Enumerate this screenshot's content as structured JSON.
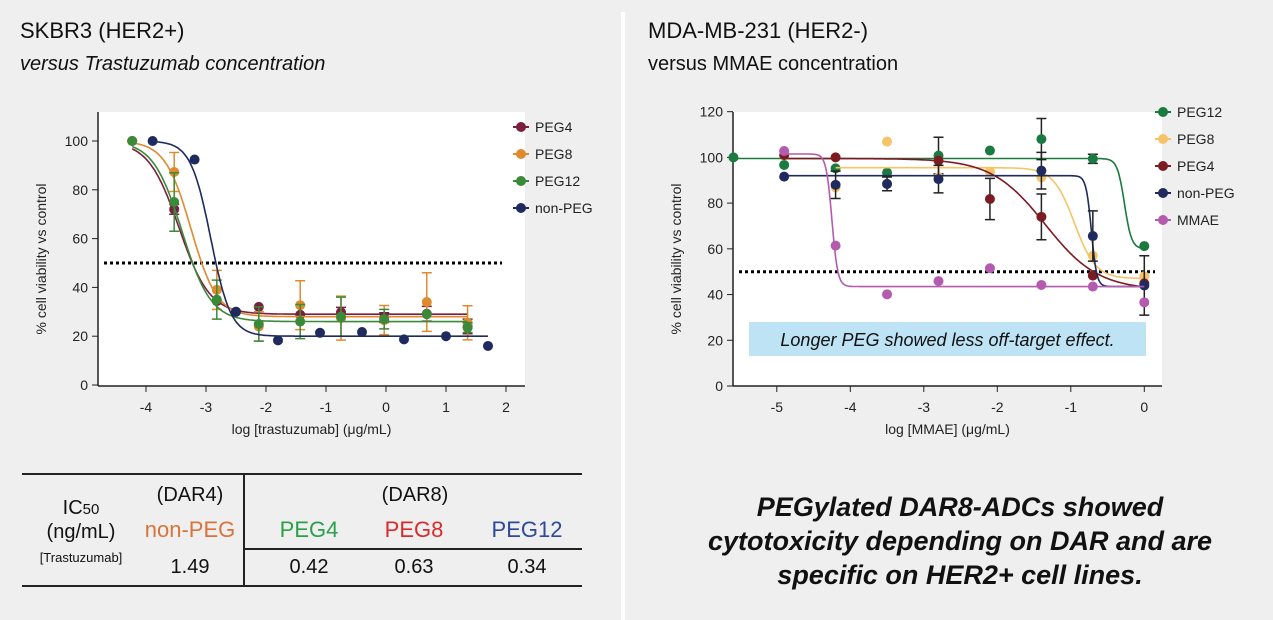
{
  "left_panel": {
    "title": "SKBR3 (HER2+)",
    "subtitle": "versus Trastuzumab concentration"
  },
  "right_panel": {
    "title": "MDA-MB-231 (HER2-)",
    "subtitle": "versus MMAE concentration",
    "conclusion": [
      "PEGylated DAR8-ADCs showed",
      "cytotoxicity depending on DAR and are",
      "specific on HER2+ cell lines."
    ]
  },
  "chart_data": [
    {
      "type": "scatter",
      "xlabel": "log [trastuzumab] (μg/mL)",
      "ylabel": "% cell viability vs control",
      "xlim": [
        -4.8,
        2.3
      ],
      "ylim": [
        0,
        110
      ],
      "xticks": [
        -4,
        -3,
        -2,
        -1,
        0,
        1,
        2
      ],
      "yticks": [
        0,
        20,
        40,
        60,
        80,
        100
      ],
      "reference_line": {
        "y": 50,
        "style": "dotted"
      },
      "legend_position": "right",
      "series": [
        {
          "name": "PEG4",
          "color": "#7a1f3d",
          "points": [
            [
              -4.23,
              100,
              0
            ],
            [
              -3.53,
              72,
              2
            ],
            [
              -2.82,
              34.4,
              0
            ],
            [
              -2.5,
              30,
              0
            ],
            [
              -2.12,
              32,
              0
            ],
            [
              -1.43,
              28.8,
              0
            ],
            [
              -0.75,
              29.8,
              2
            ],
            [
              -0.03,
              27.6,
              2
            ],
            [
              0.68,
              29.2,
              3
            ],
            [
              1.36,
              24,
              3
            ]
          ],
          "fit": {
            "top": 100,
            "bottom": 29,
            "logIC50": -3.45,
            "hill": 1.7
          }
        },
        {
          "name": "PEG8",
          "color": "#e08a2e",
          "points": [
            [
              -4.23,
              100,
              0
            ],
            [
              -3.53,
              87.3,
              8
            ],
            [
              -2.82,
              39,
              8
            ],
            [
              -2.12,
              24,
              6
            ],
            [
              -1.43,
              32.7,
              10
            ],
            [
              -0.75,
              27.4,
              9
            ],
            [
              -0.03,
              26.6,
              6
            ],
            [
              0.68,
              34,
              12
            ],
            [
              1.36,
              25.5,
              7
            ]
          ],
          "fit": {
            "top": 100,
            "bottom": 28,
            "logIC50": -3.25,
            "hill": 2.0
          }
        },
        {
          "name": "PEG12",
          "color": "#3a8a3a",
          "points": [
            [
              -4.23,
              100,
              0
            ],
            [
              -3.53,
              75,
              12
            ],
            [
              -2.82,
              35,
              8
            ],
            [
              -2.12,
              25,
              7
            ],
            [
              -1.43,
              26,
              7
            ],
            [
              -0.75,
              28,
              8
            ],
            [
              -0.03,
              27,
              4
            ],
            [
              0.68,
              29,
              0
            ],
            [
              1.36,
              23.5,
              2
            ]
          ],
          "fit": {
            "top": 100,
            "bottom": 26,
            "logIC50": -3.4,
            "hill": 1.8
          }
        },
        {
          "name": "non-PEG",
          "color": "#1f2a5e",
          "points": [
            [
              -3.89,
              100,
              0
            ],
            [
              -3.19,
              92.4,
              0
            ],
            [
              -2.5,
              30,
              0
            ],
            [
              -1.8,
              18.3,
              0
            ],
            [
              -1.1,
              21.4,
              0
            ],
            [
              -0.4,
              21.7,
              0
            ],
            [
              0.3,
              18.7,
              0
            ],
            [
              1.0,
              20,
              0
            ],
            [
              1.7,
              16,
              0
            ]
          ],
          "fit": {
            "top": 100,
            "bottom": 20,
            "logIC50": -2.92,
            "hill": 2.6
          }
        }
      ]
    },
    {
      "type": "scatter",
      "xlabel": "log [MMAE] (μg/mL)",
      "ylabel": "% cell viability vs control",
      "xlim": [
        -5.6,
        0.25
      ],
      "ylim": [
        0,
        120
      ],
      "xticks": [
        -5,
        -4,
        -3,
        -2,
        -1,
        0
      ],
      "yticks": [
        0,
        20,
        40,
        60,
        80,
        100,
        120
      ],
      "reference_line": {
        "y": 50,
        "style": "dotted"
      },
      "legend_position": "right",
      "annotation": "Longer PEG showed less off-target effect.",
      "series": [
        {
          "name": "PEG12",
          "color": "#1a7a3f",
          "points": [
            [
              -5.59,
              100,
              0
            ],
            [
              -4.9,
              96.7,
              0
            ],
            [
              -4.2,
              95.2,
              0
            ],
            [
              -3.5,
              93.3,
              0
            ],
            [
              -2.8,
              100.8,
              8
            ],
            [
              -2.1,
              103,
              0
            ],
            [
              -1.4,
              108,
              9
            ],
            [
              -0.7,
              99.4,
              2
            ],
            [
              0,
              61.2,
              0
            ]
          ],
          "fit": {
            "top": 99.5,
            "bottom": 60,
            "logIC50": -0.27,
            "hill": 9
          }
        },
        {
          "name": "PEG8",
          "color": "#f5c468",
          "points": [
            [
              -4.2,
              86.9,
              0
            ],
            [
              -3.5,
              106.9,
              0
            ],
            [
              -2.8,
              91.3,
              0
            ],
            [
              -2.1,
              93.8,
              0
            ],
            [
              -1.4,
              91.3,
              0
            ],
            [
              -0.7,
              57,
              0
            ],
            [
              0,
              48,
              0
            ]
          ],
          "fit": {
            "top": 95.5,
            "bottom": 47,
            "logIC50": -0.95,
            "hill": 3
          }
        },
        {
          "name": "PEG4",
          "color": "#7b1c22",
          "points": [
            [
              -4.9,
              101,
              0
            ],
            [
              -4.2,
              100,
              0
            ],
            [
              -2.8,
              98.6,
              0
            ],
            [
              -2.1,
              81.8,
              9
            ],
            [
              -1.4,
              74,
              10
            ],
            [
              -0.7,
              48.3,
              0
            ],
            [
              0,
              44.9,
              0
            ]
          ],
          "fit": {
            "top": 99.5,
            "bottom": 42,
            "logIC50": -1.35,
            "hill": 1.2
          }
        },
        {
          "name": "non-PEG",
          "color": "#1f2a5e",
          "points": [
            [
              -4.9,
              91.6,
              0
            ],
            [
              -4.2,
              88,
              6
            ],
            [
              -3.5,
              88.4,
              3
            ],
            [
              -2.8,
              90.5,
              6
            ],
            [
              -1.4,
              94.2,
              8
            ],
            [
              -0.7,
              65.6,
              11
            ],
            [
              0,
              44,
              13
            ]
          ],
          "fit": {
            "top": 92,
            "bottom": 43.5,
            "logIC50": -0.72,
            "hill": 12
          }
        },
        {
          "name": "MMAE",
          "color": "#b45bb0",
          "points": [
            [
              -4.9,
              102.8,
              0
            ],
            [
              -4.2,
              61.4,
              0
            ],
            [
              -3.5,
              40.1,
              0
            ],
            [
              -2.8,
              45.9,
              0
            ],
            [
              -2.1,
              51.5,
              0
            ],
            [
              -1.4,
              44.2,
              0
            ],
            [
              -0.7,
              43.5,
              0
            ],
            [
              0,
              36.6,
              0
            ]
          ],
          "fit": {
            "top": 101.5,
            "bottom": 43.5,
            "logIC50": -4.25,
            "hill": 11
          }
        }
      ]
    }
  ],
  "ic50_table": {
    "row_label": {
      "line1": "IC",
      "subscript": "50",
      "line2": "(ng/mL)",
      "line3": "[Trastuzumab]"
    },
    "group_dar4": "(DAR4)",
    "group_dar8": "(DAR8)",
    "columns": [
      {
        "label": "non-PEG",
        "value": "1.49",
        "color": "#d9733a"
      },
      {
        "label": "PEG4",
        "value": "0.42",
        "color": "#2aa04a"
      },
      {
        "label": "PEG8",
        "value": "0.63",
        "color": "#d92b2b"
      },
      {
        "label": "PEG12",
        "value": "0.34",
        "color": "#2d4a9a"
      }
    ]
  }
}
